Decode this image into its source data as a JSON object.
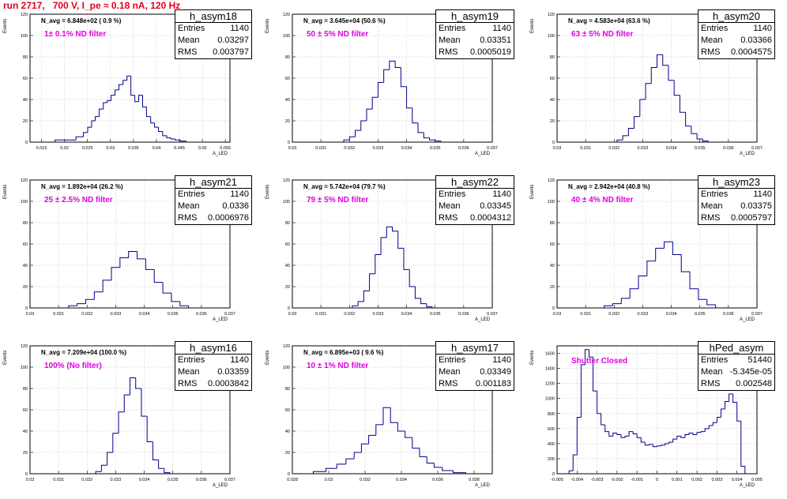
{
  "page_title": "run 2717,   700 V, I_pe ≈ 0.18 nA, 120 Hz",
  "colors": {
    "title": "#e0001a",
    "filter_text": "#e000e0",
    "histogram": "#00008b",
    "grid": "#c0c0c0"
  },
  "chart_data": [
    {
      "type": "histogram",
      "name": "h_asym18",
      "stats": {
        "entries_label": "Entries",
        "entries": "1140",
        "mean_label": "Mean",
        "mean": "0.03297",
        "rms_label": "RMS",
        "rms": "0.003797"
      },
      "n_avg": "N_avg = 6.848e+02 ( 0.9 %)",
      "filter": "1± 0.1% ND filter",
      "ylabel": "Events",
      "xlabel": "A_LED",
      "xlim": [
        0.0125,
        0.056
      ],
      "ylim": [
        0,
        120
      ],
      "xticks": [
        "0.015",
        "0.02",
        "0.025",
        "0.03",
        "0.035",
        "0.04",
        "0.045",
        "0.05",
        "0.055"
      ],
      "yticks": [
        "0",
        "20",
        "40",
        "60",
        "80",
        "100",
        "120"
      ],
      "bin_centers": [
        0.0191,
        0.0214,
        0.0236,
        0.0246,
        0.0255,
        0.0263,
        0.0271,
        0.028,
        0.0289,
        0.0297,
        0.0306,
        0.0314,
        0.0323,
        0.0332,
        0.034,
        0.0349,
        0.0357,
        0.0366,
        0.0374,
        0.0383,
        0.0392,
        0.04,
        0.0409,
        0.0418,
        0.0427,
        0.0436,
        0.0445,
        0.0458
      ],
      "counts": [
        2,
        2,
        5,
        9,
        14,
        20,
        24,
        31,
        37,
        39,
        44,
        49,
        54,
        58,
        62,
        44,
        38,
        44,
        33,
        24,
        18,
        14,
        10,
        6,
        4,
        3,
        2,
        1
      ]
    },
    {
      "type": "histogram",
      "name": "h_asym19",
      "stats": {
        "entries_label": "Entries",
        "entries": "1140",
        "mean_label": "Mean",
        "mean": "0.03351",
        "rms_label": "RMS",
        "rms": "0.0005019"
      },
      "n_avg": "N_avg = 3.645e+04 (50.6 %)",
      "filter": "50 ± 5% ND filter",
      "ylabel": "Events",
      "xlabel": "A_LED",
      "xlim": [
        0.03,
        0.037
      ],
      "ylim": [
        0,
        120
      ],
      "xticks": [
        "0.03",
        "0.031",
        "0.032",
        "0.033",
        "0.034",
        "0.035",
        "0.036",
        "0.037"
      ],
      "yticks": [
        "0",
        "20",
        "40",
        "60",
        "80",
        "100",
        "120"
      ],
      "bin_centers": [
        0.0319,
        0.0321,
        0.0323,
        0.0325,
        0.0327,
        0.0329,
        0.0331,
        0.0333,
        0.0335,
        0.0337,
        0.0339,
        0.0341,
        0.0343,
        0.0345,
        0.0347,
        0.0349,
        0.0351
      ],
      "counts": [
        2,
        5,
        11,
        20,
        31,
        42,
        56,
        68,
        76,
        70,
        52,
        32,
        18,
        9,
        4,
        2,
        1
      ]
    },
    {
      "type": "histogram",
      "name": "h_asym20",
      "stats": {
        "entries_label": "Entries",
        "entries": "1140",
        "mean_label": "Mean",
        "mean": "0.03366",
        "rms_label": "RMS",
        "rms": "0.0004575"
      },
      "n_avg": "N_avg = 4.583e+04 (63.6 %)",
      "filter": "63 ± 5% ND filter",
      "ylabel": "Events",
      "xlabel": "A_LED",
      "xlim": [
        0.03,
        0.037
      ],
      "ylim": [
        0,
        120
      ],
      "xticks": [
        "0.03",
        "0.031",
        "0.032",
        "0.033",
        "0.034",
        "0.035",
        "0.036",
        "0.037"
      ],
      "yticks": [
        "0",
        "20",
        "40",
        "60",
        "80",
        "100",
        "120"
      ],
      "bin_centers": [
        0.0322,
        0.0324,
        0.0326,
        0.0328,
        0.033,
        0.0332,
        0.0334,
        0.0336,
        0.0338,
        0.034,
        0.0342,
        0.0344,
        0.0346,
        0.0348,
        0.035,
        0.0352
      ],
      "counts": [
        2,
        6,
        13,
        24,
        40,
        55,
        70,
        82,
        72,
        58,
        44,
        28,
        15,
        8,
        3,
        1
      ]
    },
    {
      "type": "histogram",
      "name": "h_asym21",
      "stats": {
        "entries_label": "Entries",
        "entries": "1140",
        "mean_label": "Mean",
        "mean": "0.0336",
        "rms_label": "RMS",
        "rms": "0.0006976"
      },
      "n_avg": "N_avg = 1.892e+04 (26.2 %)",
      "filter": "25 ± 2.5% ND filter",
      "ylabel": "Events",
      "xlabel": "A_LED",
      "xlim": [
        0.03,
        0.037
      ],
      "ylim": [
        0,
        120
      ],
      "xticks": [
        "0.03",
        "0.031",
        "0.032",
        "0.033",
        "0.034",
        "0.035",
        "0.036",
        "0.037"
      ],
      "yticks": [
        "0",
        "20",
        "40",
        "60",
        "80",
        "100",
        "120"
      ],
      "bin_centers": [
        0.0315,
        0.0318,
        0.0321,
        0.0324,
        0.0327,
        0.033,
        0.0333,
        0.0336,
        0.0339,
        0.0342,
        0.0345,
        0.0348,
        0.0351,
        0.0354
      ],
      "counts": [
        2,
        4,
        8,
        15,
        26,
        38,
        47,
        53,
        46,
        36,
        24,
        14,
        6,
        2
      ]
    },
    {
      "type": "histogram",
      "name": "h_asym22",
      "stats": {
        "entries_label": "Entries",
        "entries": "1140",
        "mean_label": "Mean",
        "mean": "0.03345",
        "rms_label": "RMS",
        "rms": "0.0004312"
      },
      "n_avg": "N_avg = 5.742e+04 (79.7 %)",
      "filter": "79 ± 5% ND filter",
      "ylabel": "Events",
      "xlabel": "A_LED",
      "xlim": [
        0.03,
        0.037
      ],
      "ylim": [
        0,
        120
      ],
      "xticks": [
        "0.03",
        "0.031",
        "0.032",
        "0.033",
        "0.034",
        "0.035",
        "0.036",
        "0.037"
      ],
      "yticks": [
        "0",
        "20",
        "40",
        "60",
        "80",
        "100",
        "120"
      ],
      "bin_centers": [
        0.0322,
        0.0324,
        0.0326,
        0.0328,
        0.033,
        0.0332,
        0.0334,
        0.0336,
        0.0338,
        0.034,
        0.0342,
        0.0344,
        0.0346,
        0.0348
      ],
      "counts": [
        2,
        6,
        16,
        32,
        50,
        66,
        76,
        72,
        56,
        36,
        20,
        9,
        4,
        1
      ]
    },
    {
      "type": "histogram",
      "name": "h_asym23",
      "stats": {
        "entries_label": "Entries",
        "entries": "1140",
        "mean_label": "Mean",
        "mean": "0.03375",
        "rms_label": "RMS",
        "rms": "0.0005797"
      },
      "n_avg": "N_avg = 2.942e+04 (40.8 %)",
      "filter": "40 ± 4% ND filter",
      "ylabel": "Events",
      "xlabel": "A_LED",
      "xlim": [
        0.03,
        0.037
      ],
      "ylim": [
        0,
        120
      ],
      "xticks": [
        "0.03",
        "0.031",
        "0.032",
        "0.033",
        "0.034",
        "0.035",
        "0.036",
        "0.037"
      ],
      "yticks": [
        "0",
        "20",
        "40",
        "60",
        "80",
        "100",
        "120"
      ],
      "bin_centers": [
        0.0318,
        0.0321,
        0.0324,
        0.0327,
        0.033,
        0.0333,
        0.0336,
        0.0339,
        0.0342,
        0.0345,
        0.0348,
        0.0351,
        0.0354
      ],
      "counts": [
        2,
        4,
        9,
        18,
        30,
        44,
        56,
        62,
        50,
        34,
        18,
        8,
        3
      ]
    },
    {
      "type": "histogram",
      "name": "h_asym16",
      "stats": {
        "entries_label": "Entries",
        "entries": "1140",
        "mean_label": "Mean",
        "mean": "0.03359",
        "rms_label": "RMS",
        "rms": "0.0003842"
      },
      "n_avg": "N_avg = 7.209e+04 (100.0 %)",
      "filter": "100% (No filter)",
      "ylabel": "Events",
      "xlabel": "A_LED",
      "xlim": [
        0.03,
        0.037
      ],
      "ylim": [
        0,
        120
      ],
      "xticks": [
        "0.03",
        "0.031",
        "0.032",
        "0.033",
        "0.034",
        "0.035",
        "0.036",
        "0.037"
      ],
      "yticks": [
        "0",
        "20",
        "40",
        "60",
        "80",
        "100",
        "120"
      ],
      "bin_centers": [
        0.0324,
        0.0326,
        0.0328,
        0.033,
        0.0332,
        0.0334,
        0.0336,
        0.0338,
        0.034,
        0.0342,
        0.0344,
        0.0346,
        0.0348
      ],
      "counts": [
        2,
        8,
        20,
        38,
        58,
        74,
        90,
        80,
        54,
        30,
        13,
        5,
        1
      ]
    },
    {
      "type": "histogram",
      "name": "h_asym17",
      "stats": {
        "entries_label": "Entries",
        "entries": "1140",
        "mean_label": "Mean",
        "mean": "0.03349",
        "rms_label": "RMS",
        "rms": "0.001183"
      },
      "n_avg": "N_avg = 6.895e+03 ( 9.6 %)",
      "filter": "10 ± 1% ND filter",
      "ylabel": "Events",
      "xlabel": "A_LED",
      "xlim": [
        0.028,
        0.039
      ],
      "ylim": [
        0,
        120
      ],
      "xticks": [
        "0.028",
        "0.03",
        "0.032",
        "0.034",
        "0.036",
        "0.038"
      ],
      "yticks": [
        "0",
        "20",
        "40",
        "60",
        "80",
        "100",
        "120"
      ],
      "bin_centers": [
        0.0295,
        0.0302,
        0.0307,
        0.0312,
        0.0316,
        0.032,
        0.0324,
        0.0328,
        0.0332,
        0.0336,
        0.034,
        0.0344,
        0.0348,
        0.0352,
        0.0356,
        0.036,
        0.0365,
        0.0372
      ],
      "counts": [
        2,
        5,
        9,
        14,
        20,
        28,
        36,
        46,
        62,
        48,
        40,
        34,
        24,
        16,
        10,
        6,
        3,
        1
      ]
    },
    {
      "type": "histogram",
      "name": "hPed_asym",
      "stats": {
        "entries_label": "Entries",
        "entries": "51440",
        "mean_label": "Mean",
        "mean": "-5.345e-05",
        "rms_label": "RMS",
        "rms": "0.002548"
      },
      "n_avg": "",
      "filter": "Shutter Closed",
      "ylabel": "Events",
      "xlabel": "A_LED",
      "xlim": [
        -0.005,
        0.005
      ],
      "ylim": [
        0,
        1700
      ],
      "xticks": [
        "-0.005",
        "-0.004",
        "-0.003",
        "-0.002",
        "-0.001",
        "0",
        "0.001",
        "0.002",
        "0.003",
        "0.004",
        "0.005"
      ],
      "yticks": [
        "0",
        "200",
        "400",
        "600",
        "800",
        "1000",
        "1200",
        "1400",
        "1600"
      ],
      "bin_centers": [
        -0.0043,
        -0.0041,
        -0.0039,
        -0.0037,
        -0.0035,
        -0.0033,
        -0.0031,
        -0.0029,
        -0.0027,
        -0.0025,
        -0.0023,
        -0.0021,
        -0.0019,
        -0.0017,
        -0.0015,
        -0.0013,
        -0.0011,
        -0.0009,
        -0.0007,
        -0.0005,
        -0.0003,
        -0.0001,
        0.0001,
        0.0003,
        0.0005,
        0.0007,
        0.0009,
        0.0011,
        0.0013,
        0.0015,
        0.0017,
        0.0019,
        0.0021,
        0.0023,
        0.0025,
        0.0027,
        0.0029,
        0.0031,
        0.0033,
        0.0035,
        0.0037,
        0.0039,
        0.0041,
        0.0043
      ],
      "counts": [
        40,
        250,
        750,
        1450,
        1650,
        1550,
        1100,
        800,
        650,
        560,
        500,
        540,
        520,
        480,
        500,
        560,
        530,
        480,
        420,
        380,
        390,
        360,
        370,
        380,
        400,
        420,
        460,
        500,
        480,
        520,
        540,
        520,
        550,
        560,
        600,
        640,
        680,
        750,
        860,
        960,
        1060,
        950,
        700,
        100
      ]
    }
  ]
}
